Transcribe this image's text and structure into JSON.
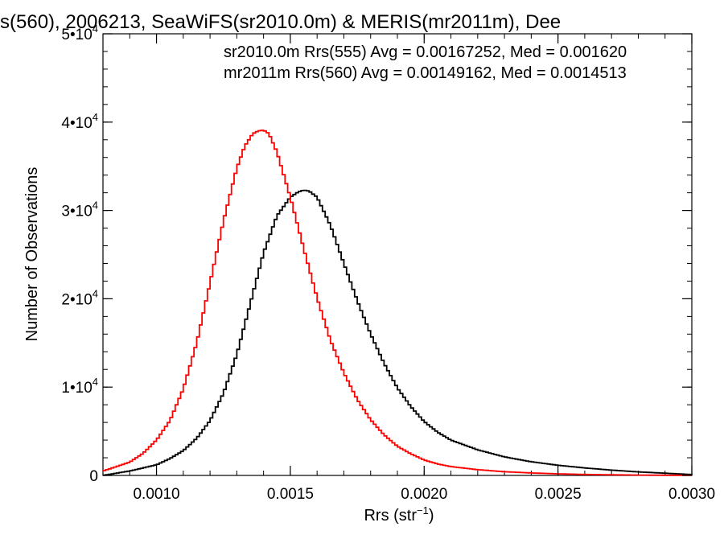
{
  "chart_data": {
    "type": "line",
    "title": "s(560), 2006213, SeaWiFS(sr2010.0m) & MERIS(mr2011m), Dee",
    "xlabel": "Rrs (str",
    "xlabel_exp": "−1",
    "xlabel_close": ")",
    "ylabel": "Number of Observations",
    "xlim": [
      0.0008,
      0.003
    ],
    "ylim": [
      0,
      50000
    ],
    "grid": false,
    "legend_position": "top-right",
    "x_ticks": [
      {
        "value": 0.001,
        "label": "0.0010"
      },
      {
        "value": 0.0015,
        "label": "0.0015"
      },
      {
        "value": 0.002,
        "label": "0.0020"
      },
      {
        "value": 0.0025,
        "label": "0.0025"
      },
      {
        "value": 0.003,
        "label": "0.0030"
      }
    ],
    "y_ticks": [
      {
        "value": 0,
        "mant": "0",
        "exp": ""
      },
      {
        "value": 10000,
        "mant": "1•10",
        "exp": "4"
      },
      {
        "value": 20000,
        "mant": "2•10",
        "exp": "4"
      },
      {
        "value": 30000,
        "mant": "3•10",
        "exp": "4"
      },
      {
        "value": 40000,
        "mant": "4•10",
        "exp": "4"
      },
      {
        "value": 50000,
        "mant": "5•10",
        "exp": "4"
      }
    ],
    "annotations": [
      {
        "text": "sr2010.0m Rrs(555) Avg = 0.00167252, Med = 0.001620",
        "color": "#000000"
      },
      {
        "text": "mr2011m Rrs(560) Avg = 0.00149162, Med = 0.0014513",
        "color": "#ff0000"
      }
    ],
    "series": [
      {
        "color": "#000000",
        "x": [
          0.0008,
          0.0009,
          0.001,
          0.00105,
          0.0011,
          0.00115,
          0.0012,
          0.00125,
          0.0013,
          0.00135,
          0.0014,
          0.00145,
          0.0015,
          0.00153,
          0.00155,
          0.00157,
          0.0016,
          0.00165,
          0.0017,
          0.00175,
          0.0018,
          0.00185,
          0.0019,
          0.00195,
          0.002,
          0.00205,
          0.0021,
          0.0022,
          0.0023,
          0.0024,
          0.0025,
          0.0026,
          0.0027,
          0.0028,
          0.0029,
          0.003
        ],
        "y": [
          0,
          500,
          1200,
          1900,
          2800,
          4200,
          6200,
          9300,
          13700,
          19400,
          25200,
          29400,
          31500,
          32100,
          32300,
          32200,
          31500,
          28300,
          24000,
          19800,
          16000,
          12700,
          9900,
          7800,
          6100,
          4900,
          4000,
          2900,
          2100,
          1550,
          1150,
          850,
          600,
          400,
          250,
          100
        ]
      },
      {
        "color": "#ff0000",
        "x": [
          0.0008,
          0.0009,
          0.00095,
          0.001,
          0.00105,
          0.0011,
          0.00115,
          0.0012,
          0.00125,
          0.0013,
          0.00133,
          0.00136,
          0.00138,
          0.0014,
          0.00142,
          0.00145,
          0.0015,
          0.00155,
          0.0016,
          0.00165,
          0.0017,
          0.00175,
          0.0018,
          0.00185,
          0.0019,
          0.00195,
          0.002,
          0.00205,
          0.0021,
          0.0022,
          0.0023,
          0.0024,
          0.0025,
          0.0026,
          0.0027,
          0.0028,
          0.0029,
          0.003
        ],
        "y": [
          500,
          1500,
          2500,
          4000,
          6200,
          9800,
          15000,
          21800,
          28800,
          34800,
          37300,
          38700,
          39000,
          39100,
          38700,
          36600,
          31500,
          25700,
          20100,
          15300,
          11600,
          8600,
          6300,
          4600,
          3300,
          2450,
          1750,
          1300,
          1000,
          650,
          420,
          280,
          180,
          110,
          70,
          40,
          20,
          10
        ]
      }
    ]
  }
}
